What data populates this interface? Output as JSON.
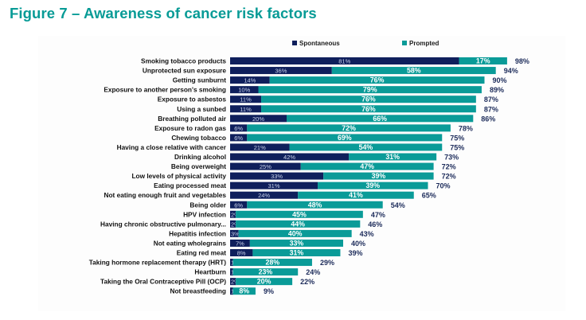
{
  "chart_data": {
    "type": "bar",
    "orientation": "horizontal",
    "stacked": true,
    "title": "Figure 7 – Awareness of cancer risk factors",
    "xlabel": "",
    "ylabel": "",
    "xlim": [
      0,
      100
    ],
    "grid": false,
    "legend_position": "top",
    "total_label_suffix": "%",
    "categories": [
      "Smoking tobacco products",
      "Unprotected sun exposure",
      "Getting sunburnt",
      "Exposure to another person's smoking",
      "Exposure to asbestos",
      "Using a sunbed",
      "Breathing polluted air",
      "Exposure to radon gas",
      "Chewing tobacco",
      "Having a close relative with cancer",
      "Drinking alcohol",
      "Being overweight",
      "Low levels of physical activity",
      "Eating processed meat",
      "Not eating enough fruit and vegetables",
      "Being older",
      "HPV infection",
      "Having chronic obstructive pulmonary...",
      "Hepatitis infection",
      "Not eating wholegrains",
      "Eating red meat",
      "Taking hormone replacement therapy (HRT)",
      "Heartburn",
      "Taking the Oral Contraceptive Pill (OCP)",
      "Not breastfeeding"
    ],
    "series": [
      {
        "name": "Spontaneous",
        "color": "#0f1f5c",
        "label_color": "#c9d2ea",
        "values": [
          81,
          36,
          14,
          10,
          11,
          11,
          20,
          6,
          6,
          21,
          42,
          25,
          33,
          31,
          24,
          6,
          2,
          2,
          3,
          7,
          8,
          1,
          1,
          2,
          1
        ]
      },
      {
        "name": "Prompted",
        "color": "#0a9b98",
        "label_color": "#ffffff",
        "values": [
          17,
          58,
          76,
          79,
          76,
          76,
          66,
          72,
          69,
          54,
          31,
          47,
          39,
          39,
          41,
          48,
          45,
          44,
          40,
          33,
          31,
          28,
          23,
          20,
          8
        ]
      }
    ],
    "totals": [
      98,
      94,
      90,
      89,
      87,
      87,
      86,
      78,
      75,
      75,
      73,
      72,
      72,
      70,
      65,
      54,
      47,
      46,
      43,
      40,
      39,
      29,
      24,
      22,
      9
    ],
    "total_label_color": "#1c2b5a"
  }
}
